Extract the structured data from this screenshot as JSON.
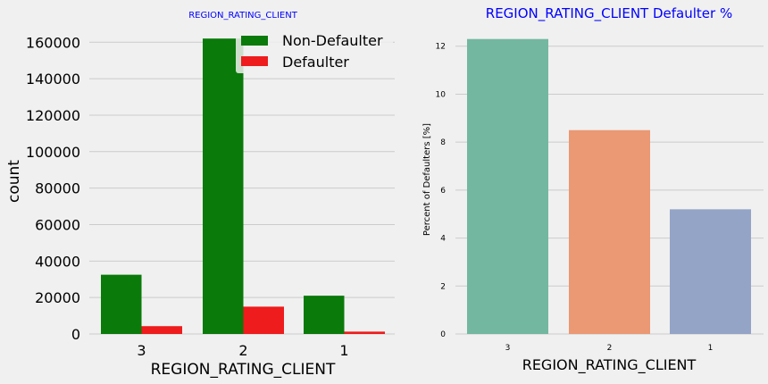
{
  "colors": {
    "background": "#f0f0f0",
    "grid": "#cbcbcb",
    "title_blue": "#0000ff",
    "non_defaulter": "#0a7a0a",
    "defaulter": "#ee1c1c",
    "pct_bars": [
      "#73b7a0",
      "#eb9874",
      "#94a4c7"
    ]
  },
  "chart_data": [
    {
      "type": "bar",
      "title": "REGION_RATING_CLIENT",
      "xlabel": "REGION_RATING_CLIENT",
      "ylabel": "count",
      "categories": [
        "3",
        "2",
        "1"
      ],
      "series": [
        {
          "name": "Non-Defaulter",
          "values": [
            32500,
            162000,
            21000
          ]
        },
        {
          "name": "Defaulter",
          "values": [
            4300,
            15000,
            1300
          ]
        }
      ],
      "ylim": [
        0,
        166000
      ],
      "yticks": [
        "0",
        "20000",
        "40000",
        "60000",
        "80000",
        "100000",
        "120000",
        "140000",
        "160000"
      ],
      "legend": "top-right",
      "grid": "y"
    },
    {
      "type": "bar",
      "title": "REGION_RATING_CLIENT Defaulter %",
      "xlabel": "REGION_RATING_CLIENT",
      "ylabel": "Percent of Defaulters [%]",
      "categories": [
        "3",
        "2",
        "1"
      ],
      "values": [
        12.3,
        8.5,
        5.2
      ],
      "ylim": [
        0,
        12.4
      ],
      "yticks": [
        "0",
        "2",
        "4",
        "6",
        "8",
        "10",
        "12"
      ],
      "grid": "y"
    }
  ]
}
